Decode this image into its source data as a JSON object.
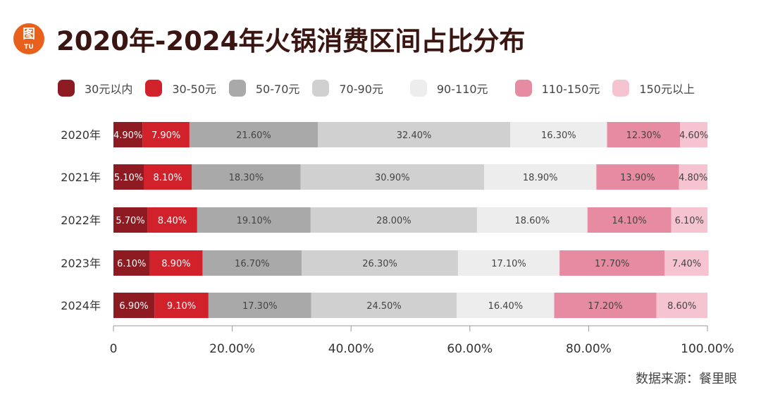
{
  "logo": {
    "glyph": "图",
    "text": "TU"
  },
  "chart_data": {
    "type": "bar",
    "orientation": "horizontal",
    "stacked": true,
    "title": "2020年-2024年火锅消费区间占比分布",
    "categories": [
      "2020年",
      "2021年",
      "2022年",
      "2023年",
      "2024年"
    ],
    "series": [
      {
        "name": "30元以内",
        "color": "#8e1b22",
        "values": [
          4.9,
          5.1,
          5.7,
          6.1,
          6.9
        ]
      },
      {
        "name": "30-50元",
        "color": "#d1222b",
        "values": [
          7.9,
          8.1,
          8.4,
          8.9,
          9.1
        ]
      },
      {
        "name": "50-70元",
        "color": "#a9a9a9",
        "values": [
          21.6,
          18.3,
          19.1,
          16.7,
          17.3
        ]
      },
      {
        "name": "70-90元",
        "color": "#d0d0d0",
        "values": [
          32.4,
          30.9,
          28.0,
          26.3,
          24.5
        ]
      },
      {
        "name": "90-110元",
        "color": "#ededed",
        "values": [
          16.3,
          18.9,
          18.6,
          17.1,
          16.4
        ]
      },
      {
        "name": "110-150元",
        "color": "#e68ba1",
        "values": [
          12.3,
          13.9,
          14.1,
          17.7,
          17.2
        ]
      },
      {
        "name": "150元以上",
        "color": "#f6c4d0",
        "values": [
          4.6,
          4.8,
          6.1,
          7.4,
          8.6
        ]
      }
    ],
    "xticks": [
      "0",
      "20.00%",
      "40.00%",
      "60.00%",
      "80.00%",
      "100.00%"
    ],
    "xlim": [
      0,
      100
    ],
    "legend_position": "top",
    "grid": false,
    "source": "数据来源：餐里眼"
  }
}
